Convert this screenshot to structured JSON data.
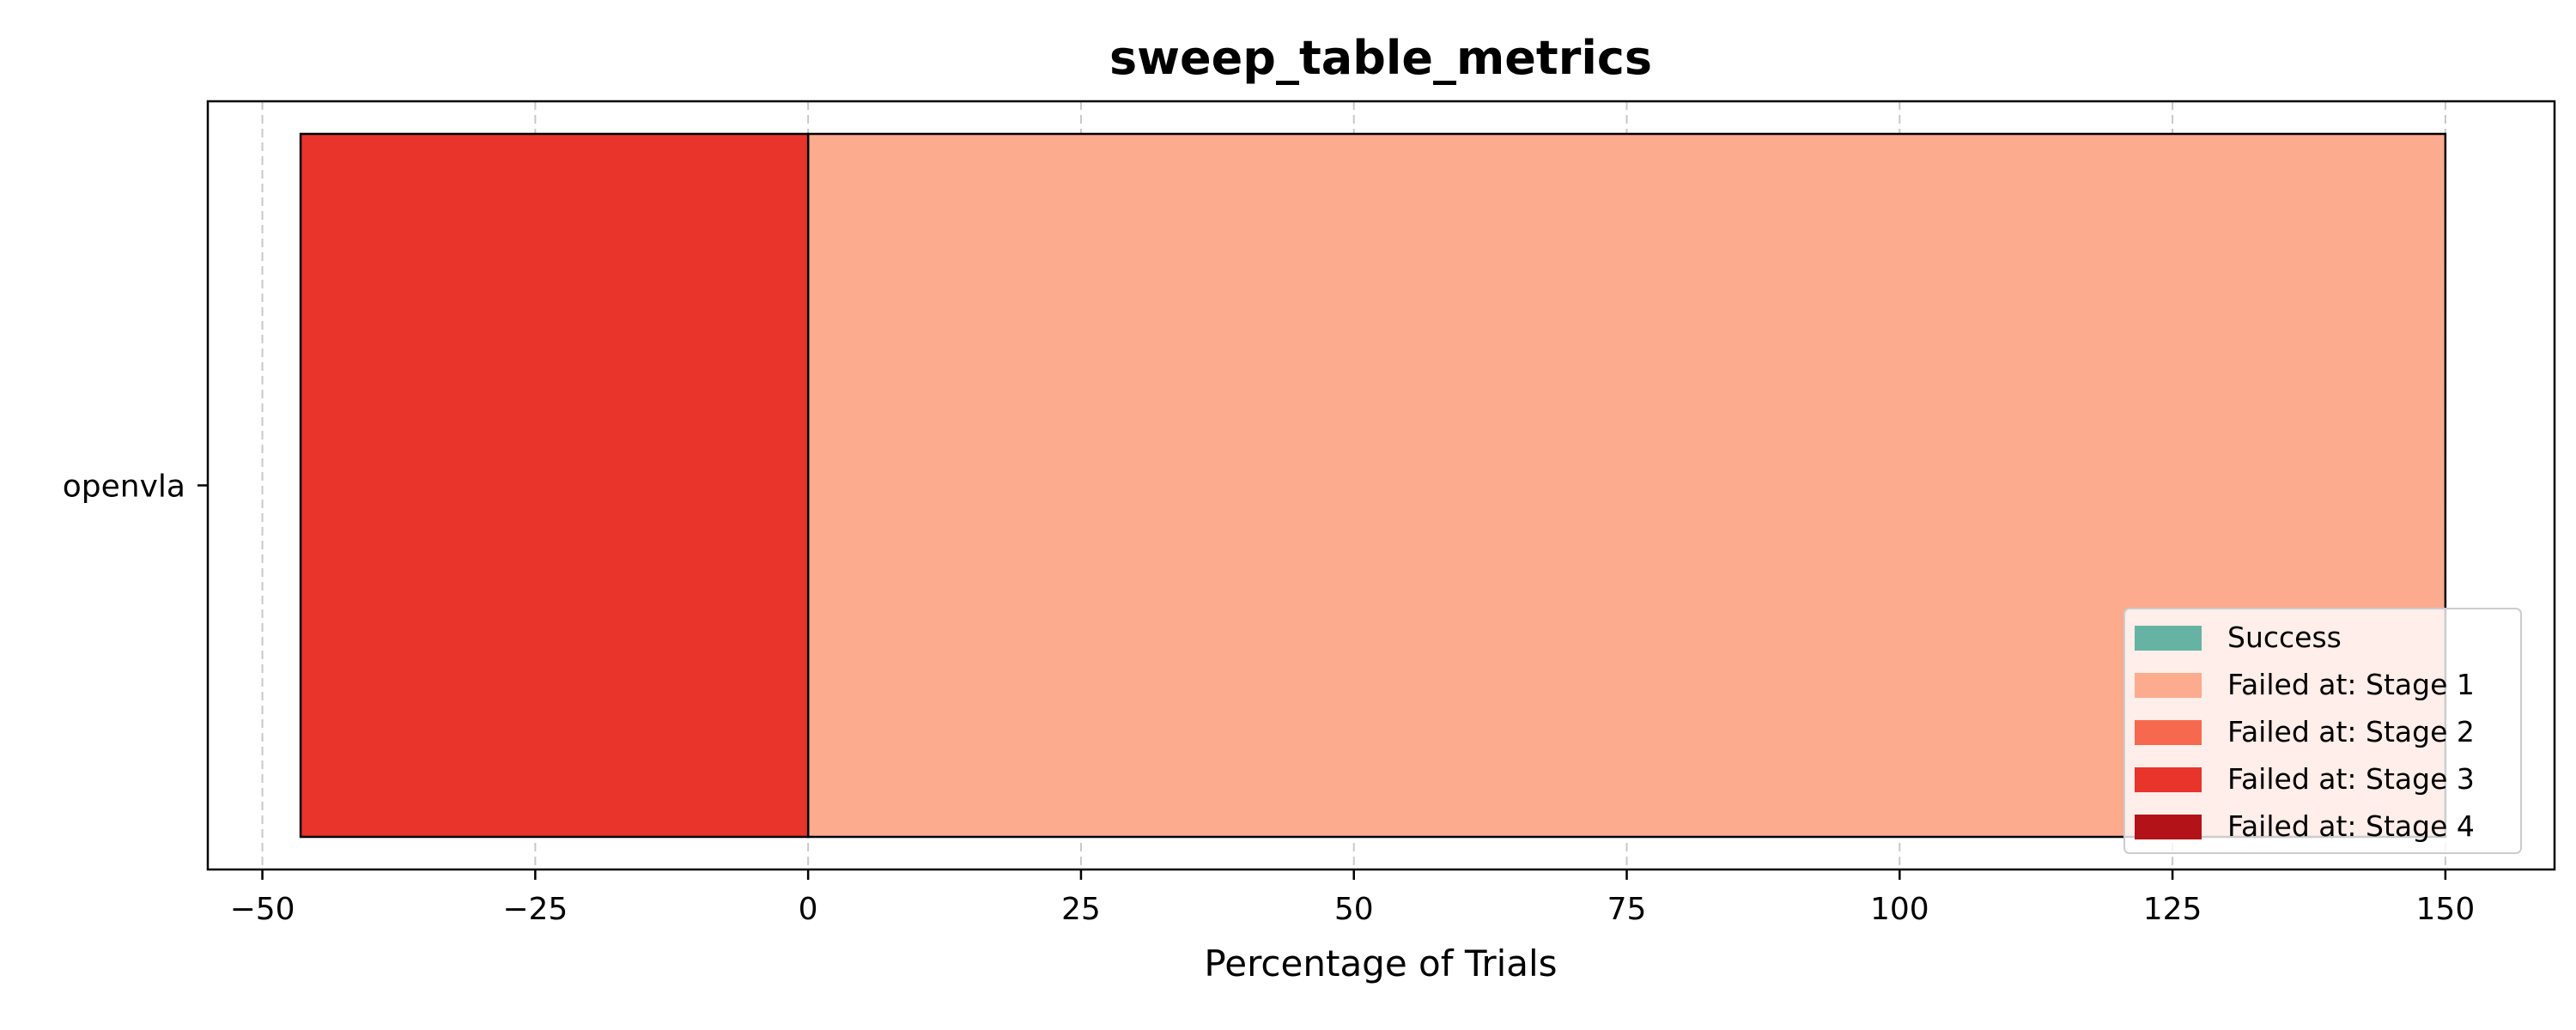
{
  "chart_data": {
    "type": "bar",
    "orientation": "horizontal",
    "stacked": true,
    "title": "sweep_table_metrics",
    "xlabel": "Percentage of Trials",
    "ylabel": "",
    "categories": [
      "openvla"
    ],
    "xlim": [
      -55,
      160
    ],
    "xticks": [
      -50,
      -25,
      0,
      25,
      50,
      75,
      100,
      125,
      150
    ],
    "xtick_labels": [
      "−50",
      "−25",
      "0",
      "25",
      "50",
      "75",
      "100",
      "125",
      "150"
    ],
    "grid": "x-dashed",
    "legend_position": "bottom-right",
    "series": [
      {
        "name": "Success",
        "color": "#67b3a3",
        "segments": []
      },
      {
        "name": "Failed at: Stage 1",
        "color": "#fcab8f",
        "segments": [
          [
            0,
            150
          ]
        ]
      },
      {
        "name": "Failed at: Stage 2",
        "color": "#f6694e",
        "segments": []
      },
      {
        "name": "Failed at: Stage 3",
        "color": "#e8342a",
        "segments": [
          [
            -46.5,
            0
          ]
        ]
      },
      {
        "name": "Failed at: Stage 4",
        "color": "#b21218",
        "segments": []
      }
    ]
  }
}
